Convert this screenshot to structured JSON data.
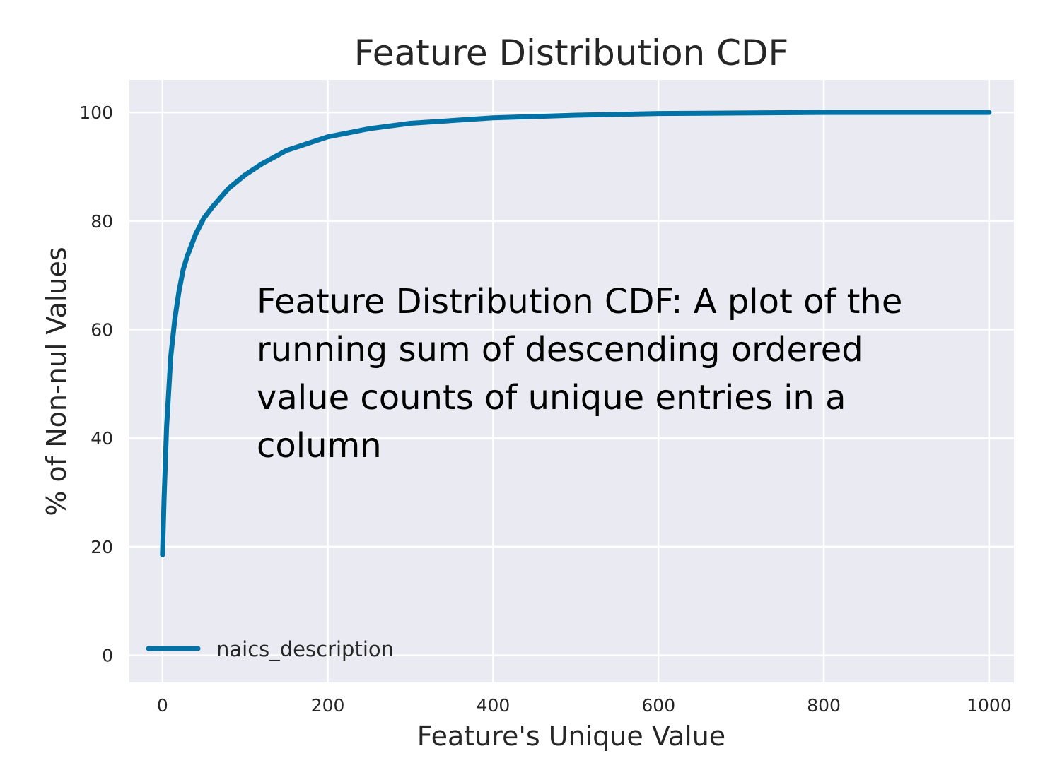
{
  "chart_data": {
    "type": "line",
    "title": "Feature Distribution CDF",
    "xlabel": "Feature's Unique Value",
    "ylabel": "% of Non-nul Values",
    "xlim": [
      -40,
      1030
    ],
    "ylim": [
      -5,
      106
    ],
    "xticks": [
      0,
      200,
      400,
      600,
      800,
      1000
    ],
    "yticks": [
      0,
      20,
      40,
      60,
      80,
      100
    ],
    "grid": true,
    "legend_position": "lower-left",
    "annotation_lines": [
      "Feature Distribution CDF: A plot of the",
      "running sum of descending ordered",
      "value counts of unique entries in a",
      "column"
    ],
    "series": [
      {
        "name": "naics_description",
        "color": "#0072a6",
        "x": [
          0,
          2,
          5,
          10,
          15,
          20,
          25,
          30,
          40,
          50,
          60,
          80,
          100,
          120,
          150,
          200,
          250,
          300,
          400,
          500,
          600,
          700,
          800,
          900,
          1000
        ],
        "y": [
          18.5,
          29,
          42,
          55,
          62,
          67,
          71,
          73.5,
          77.5,
          80.5,
          82.5,
          86,
          88.5,
          90.5,
          93,
          95.5,
          97,
          98,
          99,
          99.5,
          99.8,
          99.9,
          100,
          100,
          100
        ]
      }
    ]
  }
}
